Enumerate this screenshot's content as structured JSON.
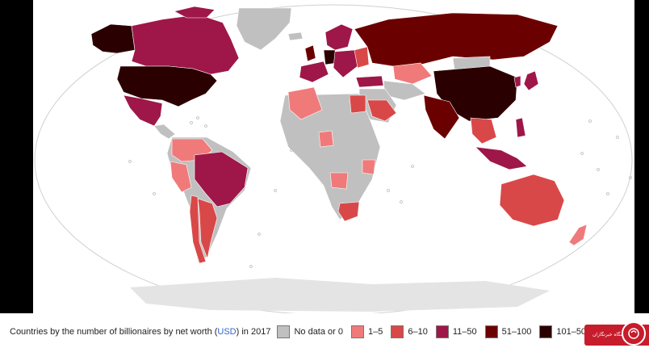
{
  "caption": {
    "prefix": "Countries by the number of billionaires by net worth (",
    "currency": "USD",
    "suffix": ") in 2017"
  },
  "legend": [
    {
      "label": "No data or 0",
      "color": "#c0c0c0"
    },
    {
      "label": "1–5",
      "color": "#f07a7a"
    },
    {
      "label": "6–10",
      "color": "#d94848"
    },
    {
      "label": "11–50",
      "color": "#9e1748"
    },
    {
      "label": "51–100",
      "color": "#6b0000"
    },
    {
      "label": "101–500",
      "color": "#2b0000"
    }
  ],
  "colors": {
    "ocean": "#ffffff",
    "border": "#ffffff",
    "black_band": "#000000",
    "nodata": "#c0c0c0",
    "c1": "#f07a7a",
    "c2": "#d94848",
    "c3": "#9e1748",
    "c4": "#6b0000",
    "c5": "#2b0000",
    "watermark": "#c71c2c"
  },
  "watermark": {
    "text": "باشگاه خبرنگاران"
  }
}
